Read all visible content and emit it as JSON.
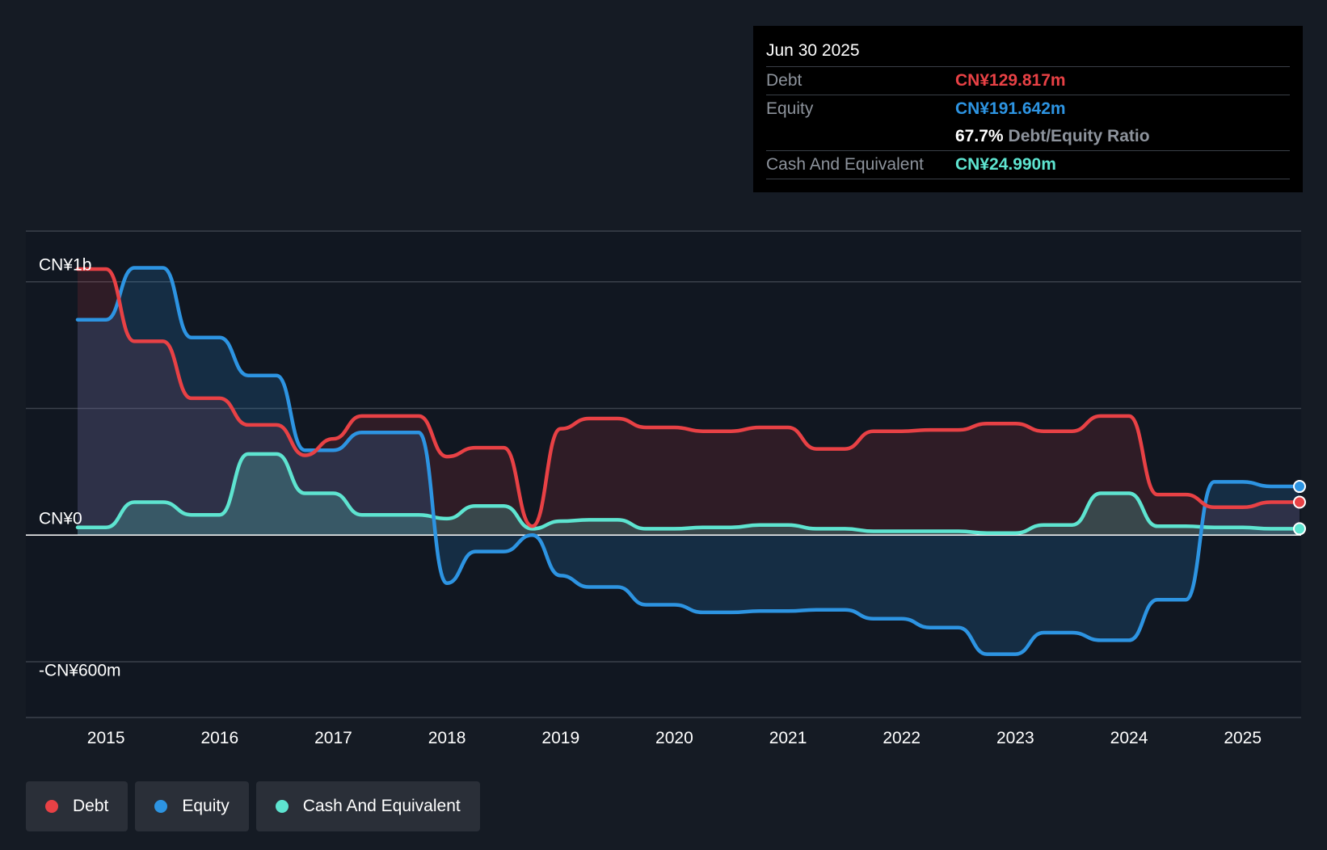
{
  "tooltip": {
    "date": "Jun 30 2025",
    "rows": [
      {
        "label": "Debt",
        "value": "CN¥129.817m",
        "color": "#e84145"
      },
      {
        "label": "Equity",
        "value": "CN¥191.642m",
        "color": "#2d94e2"
      }
    ],
    "ratio": {
      "value": "67.7%",
      "label": "Debt/Equity Ratio"
    },
    "cash": {
      "label": "Cash And Equivalent",
      "value": "CN¥24.990m",
      "color": "#5ee4d0"
    }
  },
  "legend": [
    {
      "label": "Debt",
      "color": "#e84145"
    },
    {
      "label": "Equity",
      "color": "#2d94e2"
    },
    {
      "label": "Cash And Equivalent",
      "color": "#5ee4d0"
    }
  ],
  "chart_data": {
    "type": "area",
    "y_tick_labels": [
      {
        "value": 1000,
        "label": "CN¥1b"
      },
      {
        "value": 0,
        "label": "CN¥0"
      },
      {
        "value": -600,
        "label": "-CN¥600m"
      }
    ],
    "ylim": [
      -720,
      1200
    ],
    "xlim": [
      2014.75,
      2025.5
    ],
    "x_ticks": [
      2015,
      2016,
      2017,
      2018,
      2019,
      2020,
      2021,
      2022,
      2023,
      2024,
      2025
    ],
    "gridlines": [
      1200,
      1000,
      500,
      -500
    ],
    "series": [
      {
        "name": "Debt",
        "color": "#e84145",
        "points": [
          [
            2014.75,
            1050
          ],
          [
            2015.0,
            1050
          ],
          [
            2015.25,
            765
          ],
          [
            2015.5,
            765
          ],
          [
            2015.75,
            540
          ],
          [
            2016.0,
            540
          ],
          [
            2016.25,
            435
          ],
          [
            2016.5,
            435
          ],
          [
            2016.75,
            315
          ],
          [
            2017.0,
            380
          ],
          [
            2017.25,
            470
          ],
          [
            2017.5,
            470
          ],
          [
            2017.75,
            470
          ],
          [
            2018.0,
            310
          ],
          [
            2018.25,
            345
          ],
          [
            2018.5,
            345
          ],
          [
            2018.75,
            35
          ],
          [
            2019.0,
            420
          ],
          [
            2019.25,
            460
          ],
          [
            2019.5,
            460
          ],
          [
            2019.75,
            425
          ],
          [
            2020.0,
            425
          ],
          [
            2020.25,
            410
          ],
          [
            2020.5,
            410
          ],
          [
            2020.75,
            425
          ],
          [
            2021.0,
            425
          ],
          [
            2021.25,
            340
          ],
          [
            2021.5,
            340
          ],
          [
            2021.75,
            410
          ],
          [
            2022.0,
            410
          ],
          [
            2022.25,
            415
          ],
          [
            2022.5,
            415
          ],
          [
            2022.75,
            440
          ],
          [
            2023.0,
            440
          ],
          [
            2023.25,
            410
          ],
          [
            2023.5,
            410
          ],
          [
            2023.75,
            470
          ],
          [
            2024.0,
            470
          ],
          [
            2024.25,
            160
          ],
          [
            2024.5,
            160
          ],
          [
            2024.75,
            110
          ],
          [
            2025.0,
            110
          ],
          [
            2025.25,
            130
          ],
          [
            2025.5,
            130
          ]
        ]
      },
      {
        "name": "Equity",
        "color": "#2d94e2",
        "points": [
          [
            2014.75,
            850
          ],
          [
            2015.0,
            850
          ],
          [
            2015.25,
            1055
          ],
          [
            2015.5,
            1055
          ],
          [
            2015.75,
            780
          ],
          [
            2016.0,
            780
          ],
          [
            2016.25,
            630
          ],
          [
            2016.5,
            630
          ],
          [
            2016.75,
            335
          ],
          [
            2017.0,
            335
          ],
          [
            2017.25,
            405
          ],
          [
            2017.5,
            405
          ],
          [
            2017.75,
            405
          ],
          [
            2018.0,
            -190
          ],
          [
            2018.25,
            -65
          ],
          [
            2018.5,
            -65
          ],
          [
            2018.75,
            0
          ],
          [
            2019.0,
            -160
          ],
          [
            2019.25,
            -205
          ],
          [
            2019.5,
            -205
          ],
          [
            2019.75,
            -275
          ],
          [
            2020.0,
            -275
          ],
          [
            2020.25,
            -305
          ],
          [
            2020.5,
            -305
          ],
          [
            2020.75,
            -300
          ],
          [
            2021.0,
            -300
          ],
          [
            2021.25,
            -295
          ],
          [
            2021.5,
            -295
          ],
          [
            2021.75,
            -330
          ],
          [
            2022.0,
            -330
          ],
          [
            2022.25,
            -365
          ],
          [
            2022.5,
            -365
          ],
          [
            2022.75,
            -470
          ],
          [
            2023.0,
            -470
          ],
          [
            2023.25,
            -385
          ],
          [
            2023.5,
            -385
          ],
          [
            2023.75,
            -415
          ],
          [
            2024.0,
            -415
          ],
          [
            2024.25,
            -255
          ],
          [
            2024.5,
            -255
          ],
          [
            2024.75,
            210
          ],
          [
            2025.0,
            210
          ],
          [
            2025.25,
            192
          ],
          [
            2025.5,
            192
          ]
        ]
      },
      {
        "name": "Cash And Equivalent",
        "color": "#5ee4d0",
        "points": [
          [
            2014.75,
            30
          ],
          [
            2015.0,
            30
          ],
          [
            2015.25,
            130
          ],
          [
            2015.5,
            130
          ],
          [
            2015.75,
            80
          ],
          [
            2016.0,
            80
          ],
          [
            2016.25,
            320
          ],
          [
            2016.5,
            320
          ],
          [
            2016.75,
            165
          ],
          [
            2017.0,
            165
          ],
          [
            2017.25,
            80
          ],
          [
            2017.5,
            80
          ],
          [
            2017.75,
            80
          ],
          [
            2018.0,
            65
          ],
          [
            2018.25,
            115
          ],
          [
            2018.5,
            115
          ],
          [
            2018.75,
            25
          ],
          [
            2019.0,
            55
          ],
          [
            2019.25,
            60
          ],
          [
            2019.5,
            60
          ],
          [
            2019.75,
            25
          ],
          [
            2020.0,
            25
          ],
          [
            2020.25,
            30
          ],
          [
            2020.5,
            30
          ],
          [
            2020.75,
            40
          ],
          [
            2021.0,
            40
          ],
          [
            2021.25,
            25
          ],
          [
            2021.5,
            25
          ],
          [
            2021.75,
            15
          ],
          [
            2022.0,
            15
          ],
          [
            2022.25,
            15
          ],
          [
            2022.5,
            15
          ],
          [
            2022.75,
            8
          ],
          [
            2023.0,
            8
          ],
          [
            2023.25,
            40
          ],
          [
            2023.5,
            40
          ],
          [
            2023.75,
            165
          ],
          [
            2024.0,
            165
          ],
          [
            2024.25,
            35
          ],
          [
            2024.5,
            35
          ],
          [
            2024.75,
            30
          ],
          [
            2025.0,
            30
          ],
          [
            2025.25,
            25
          ],
          [
            2025.5,
            25
          ]
        ]
      }
    ]
  }
}
